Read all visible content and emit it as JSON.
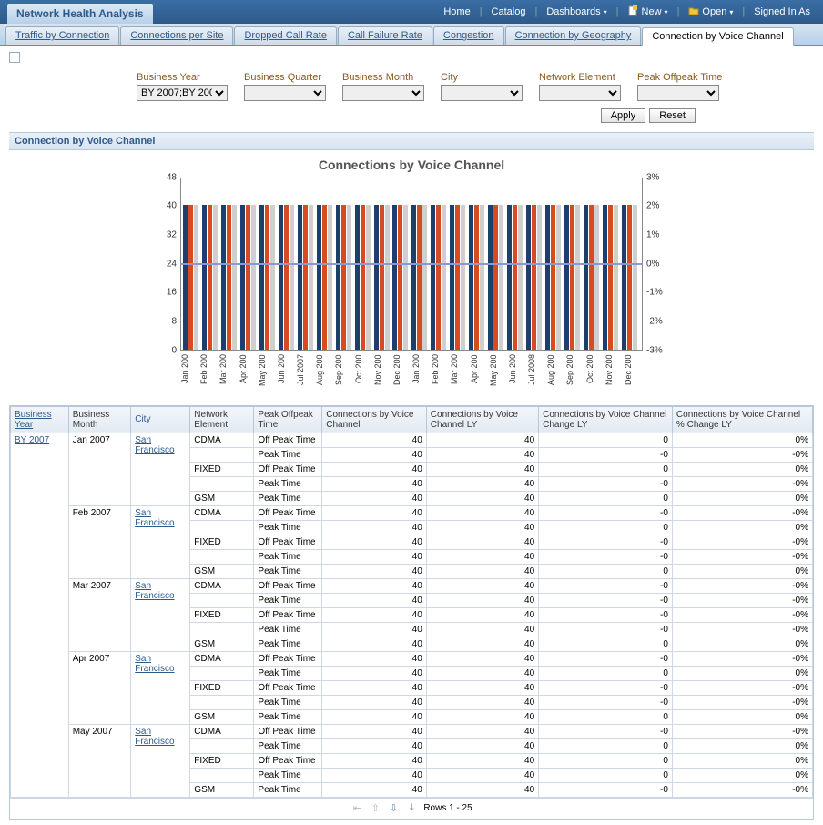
{
  "topbar": {
    "title": "Network Health Analysis",
    "links": {
      "home": "Home",
      "catalog": "Catalog",
      "dashboards": "Dashboards",
      "new": "New",
      "open": "Open",
      "signedin": "Signed In As"
    }
  },
  "tabs": [
    {
      "label": "Traffic by Connection",
      "active": false
    },
    {
      "label": "Connections per Site",
      "active": false
    },
    {
      "label": "Dropped Call Rate",
      "active": false
    },
    {
      "label": "Call Failure Rate",
      "active": false
    },
    {
      "label": "Congestion",
      "active": false
    },
    {
      "label": "Connection by Geography",
      "active": false
    },
    {
      "label": "Connection by Voice Channel",
      "active": true
    }
  ],
  "filters": {
    "business_year": {
      "label": "Business Year",
      "value": "BY 2007;BY 200"
    },
    "business_quarter": {
      "label": "Business Quarter",
      "value": ""
    },
    "business_month": {
      "label": "Business Month",
      "value": ""
    },
    "city": {
      "label": "City",
      "value": ""
    },
    "network_element": {
      "label": "Network Element",
      "value": ""
    },
    "peak_offpeak": {
      "label": "Peak Offpeak Time",
      "value": ""
    },
    "apply": "Apply",
    "reset": "Reset"
  },
  "section_title": "Connection by Voice Channel",
  "chart": {
    "title": "Connections by Voice Channel",
    "type": "bar",
    "y_ticks": [
      0,
      8,
      16,
      24,
      32,
      40,
      48
    ],
    "y_max": 48,
    "y2_ticks": [
      "-3%",
      "-2%",
      "-1%",
      "0%",
      "1%",
      "2%",
      "3%"
    ],
    "bar_colors": [
      "#1c3f6e",
      "#d84a1f",
      "#cfcfcf"
    ],
    "ref_line_value": 24,
    "ref_line_color": "#8a9ace",
    "months": [
      "Jan 200",
      "Feb 200",
      "Mar 200",
      "Apr 200",
      "May 200",
      "Jun 200",
      "Jul 2007",
      "Aug 200",
      "Sep 200",
      "Oct 200",
      "Nov 200",
      "Dec 200",
      "Jan 200",
      "Feb 200",
      "Mar 200",
      "Apr 200",
      "May 200",
      "Jun 200",
      "Jul 2008",
      "Aug 200",
      "Sep 200",
      "Oct 200",
      "Nov 200",
      "Dec 200"
    ],
    "series_value": 40,
    "background": "#ffffff"
  },
  "table": {
    "columns": [
      {
        "label": "Business Year",
        "link": true
      },
      {
        "label": "Business Month",
        "link": false
      },
      {
        "label": "City",
        "link": true
      },
      {
        "label": "Network Element",
        "link": false
      },
      {
        "label": "Peak Offpeak Time",
        "link": false
      },
      {
        "label": "Connections by Voice Channel",
        "link": false
      },
      {
        "label": "Connections by Voice Channel LY",
        "link": false
      },
      {
        "label": "Connections by Voice Channel Change LY",
        "link": false
      },
      {
        "label": "Connections by Voice Channel % Change LY",
        "link": false
      }
    ],
    "year": "BY 2007",
    "city": "San Francisco",
    "groups": [
      {
        "month": "Jan 2007",
        "rows": [
          {
            "ne": "CDMA",
            "t": "Off Peak Time",
            "c": 40,
            "ly": 40,
            "ch": "0",
            "pc": "0%"
          },
          {
            "ne": "",
            "t": "Peak Time",
            "c": 40,
            "ly": 40,
            "ch": "-0",
            "pc": "-0%"
          },
          {
            "ne": "FIXED",
            "t": "Off Peak Time",
            "c": 40,
            "ly": 40,
            "ch": "0",
            "pc": "0%"
          },
          {
            "ne": "",
            "t": "Peak Time",
            "c": 40,
            "ly": 40,
            "ch": "-0",
            "pc": "-0%"
          },
          {
            "ne": "GSM",
            "t": "Peak Time",
            "c": 40,
            "ly": 40,
            "ch": "0",
            "pc": "0%"
          }
        ]
      },
      {
        "month": "Feb 2007",
        "rows": [
          {
            "ne": "CDMA",
            "t": "Off Peak Time",
            "c": 40,
            "ly": 40,
            "ch": "-0",
            "pc": "-0%"
          },
          {
            "ne": "",
            "t": "Peak Time",
            "c": 40,
            "ly": 40,
            "ch": "0",
            "pc": "0%"
          },
          {
            "ne": "FIXED",
            "t": "Off Peak Time",
            "c": 40,
            "ly": 40,
            "ch": "-0",
            "pc": "-0%"
          },
          {
            "ne": "",
            "t": "Peak Time",
            "c": 40,
            "ly": 40,
            "ch": "-0",
            "pc": "-0%"
          },
          {
            "ne": "GSM",
            "t": "Peak Time",
            "c": 40,
            "ly": 40,
            "ch": "0",
            "pc": "0%"
          }
        ]
      },
      {
        "month": "Mar 2007",
        "rows": [
          {
            "ne": "CDMA",
            "t": "Off Peak Time",
            "c": 40,
            "ly": 40,
            "ch": "-0",
            "pc": "-0%"
          },
          {
            "ne": "",
            "t": "Peak Time",
            "c": 40,
            "ly": 40,
            "ch": "-0",
            "pc": "-0%"
          },
          {
            "ne": "FIXED",
            "t": "Off Peak Time",
            "c": 40,
            "ly": 40,
            "ch": "-0",
            "pc": "-0%"
          },
          {
            "ne": "",
            "t": "Peak Time",
            "c": 40,
            "ly": 40,
            "ch": "-0",
            "pc": "-0%"
          },
          {
            "ne": "GSM",
            "t": "Peak Time",
            "c": 40,
            "ly": 40,
            "ch": "0",
            "pc": "0%"
          }
        ]
      },
      {
        "month": "Apr 2007",
        "rows": [
          {
            "ne": "CDMA",
            "t": "Off Peak Time",
            "c": 40,
            "ly": 40,
            "ch": "-0",
            "pc": "-0%"
          },
          {
            "ne": "",
            "t": "Peak Time",
            "c": 40,
            "ly": 40,
            "ch": "0",
            "pc": "0%"
          },
          {
            "ne": "FIXED",
            "t": "Off Peak Time",
            "c": 40,
            "ly": 40,
            "ch": "-0",
            "pc": "-0%"
          },
          {
            "ne": "",
            "t": "Peak Time",
            "c": 40,
            "ly": 40,
            "ch": "-0",
            "pc": "-0%"
          },
          {
            "ne": "GSM",
            "t": "Peak Time",
            "c": 40,
            "ly": 40,
            "ch": "0",
            "pc": "0%"
          }
        ]
      },
      {
        "month": "May 2007",
        "rows": [
          {
            "ne": "CDMA",
            "t": "Off Peak Time",
            "c": 40,
            "ly": 40,
            "ch": "-0",
            "pc": "-0%"
          },
          {
            "ne": "",
            "t": "Peak Time",
            "c": 40,
            "ly": 40,
            "ch": "0",
            "pc": "0%"
          },
          {
            "ne": "FIXED",
            "t": "Off Peak Time",
            "c": 40,
            "ly": 40,
            "ch": "0",
            "pc": "0%"
          },
          {
            "ne": "",
            "t": "Peak Time",
            "c": 40,
            "ly": 40,
            "ch": "0",
            "pc": "0%"
          },
          {
            "ne": "GSM",
            "t": "Peak Time",
            "c": 40,
            "ly": 40,
            "ch": "-0",
            "pc": "-0%"
          }
        ]
      }
    ]
  },
  "pager": {
    "text": "Rows 1 - 25"
  }
}
